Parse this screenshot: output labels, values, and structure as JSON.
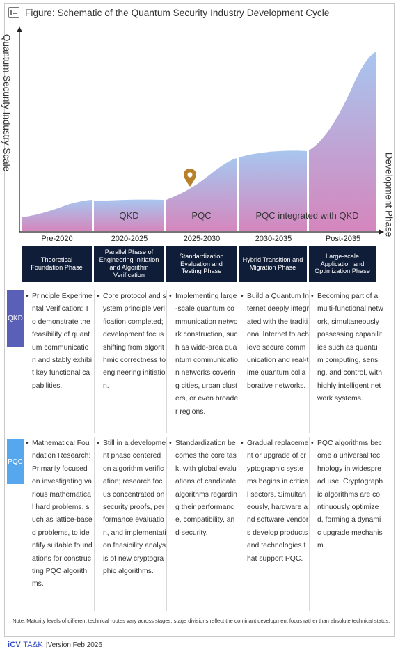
{
  "title": "Figure: Schematic of the Quantum Security Industry Development Cycle",
  "axes": {
    "y_label": "Quantum Security Industry Scale",
    "x_label": "Development Phase"
  },
  "stages": [
    {
      "period": "Pre-2020",
      "phase": "Theoretical Foundation Phase",
      "curve_label": ""
    },
    {
      "period": "2020-2025",
      "phase": "Parallel Phase of Engineering Initiation and Algorithm Verification",
      "curve_label": "QKD"
    },
    {
      "period": "2025-2030",
      "phase": "Standardization Evaluation and Testing Phase",
      "curve_label": "PQC"
    },
    {
      "period": "2030-2035",
      "phase": "Hybrid Transition and Migration Phase",
      "curve_label": "PQC integrated with QKD"
    },
    {
      "period": "Post-2035",
      "phase": "Large-scale Application and Optimization Phase",
      "curve_label": ""
    }
  ],
  "tracks": {
    "qkd": {
      "label": "QKD",
      "cells": [
        "Principle Experimental Verification: To demonstrate the feasibility of quantum communication and stably exhibit key functional capabilities.",
        "Core protocol and system principle verification completed; development focus shifting from algorithmic correctness to engineering initiation.",
        "Implementing large-scale quantum communication network construction, such as wide-area quantum communication networks covering cities, urban clusters, or even broader regions.",
        "Build a Quantum Internet deeply integrated with the traditional Internet to achieve secure communication and real-time quantum collaborative networks.",
        "Becoming part of a multi-functional network, simultaneously possessing capabilities such as quantum computing, sensing, and control, with highly intelligent network systems."
      ]
    },
    "pqc": {
      "label": "PQC",
      "cells": [
        "Mathematical Foundation Research: Primarily focused on investigating various mathematical hard problems, such as lattice-based problems, to identify suitable foundations for constructing PQC algorithms.",
        "Still in a development phase centered on algorithm verification; research focus concentrated on security proofs, performance evaluation, and implementation feasibility analysis of new cryptographic algorithms.",
        "Standardization becomes the core task, with global evaluations of candidate algorithms regarding their performance, compatibility, and security.",
        "Gradual replacement or upgrade of cryptographic systems begins in critical sectors. Simultaneously, hardware and software vendors develop products and technologies that support PQC.",
        "PQC algorithms become a universal technology in widespread use. Cryptographic algorithms are continuously optimized, forming a dynamic upgrade mechanism."
      ]
    }
  },
  "note": "Note: Maturity levels of different technical routes vary across stages; stage divisions reflect the dominant development focus rather than absolute technical status.",
  "footer": {
    "brand_a": "iCV",
    "brand_b": "TA&K",
    "version": "|Version Feb 2026"
  },
  "colors": {
    "curve_top": "#a7c6ef",
    "curve_bottom": "#d586bd",
    "phase_box": "#0f1d38",
    "track_qkd": "#5a5fb8",
    "track_pqc": "#56a7ee",
    "marker": "#b8802a"
  },
  "icons": [
    "figure-icon",
    "location-pin-icon"
  ]
}
